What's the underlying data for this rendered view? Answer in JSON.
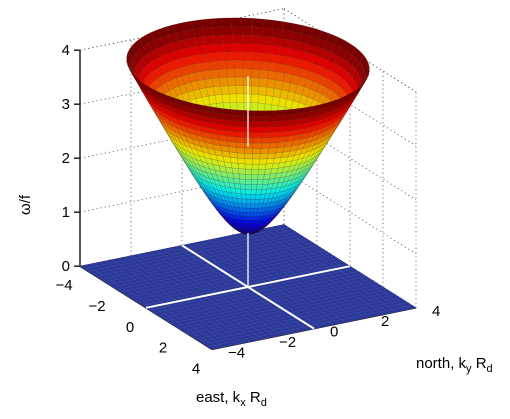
{
  "chart_data": {
    "type": "surface",
    "title": "",
    "z_label": "ω/f",
    "x_label": {
      "main": "east, k",
      "sub": "x",
      "tail": " R",
      "tail_sub": "d"
    },
    "y_label": {
      "main": "north, k",
      "sub": "y",
      "tail": " R",
      "tail_sub": "d"
    },
    "x_range": [
      -4,
      4
    ],
    "y_range": [
      -4,
      4
    ],
    "z_range": [
      0,
      4
    ],
    "x_ticks": [
      "−4",
      "−2",
      "0",
      "2",
      "4"
    ],
    "y_ticks": [
      "−4",
      "−2",
      "0",
      "2",
      "4"
    ],
    "z_ticks": [
      "0",
      "1",
      "2",
      "3",
      "4"
    ],
    "function": "omega/f = sqrt(1 + k^2 R_d^2)",
    "surface_min": 1,
    "surface_clip_radius": 4,
    "base_plane": {
      "z": 0,
      "color": "#2b3896"
    },
    "colormap": "jet",
    "grid": true
  }
}
